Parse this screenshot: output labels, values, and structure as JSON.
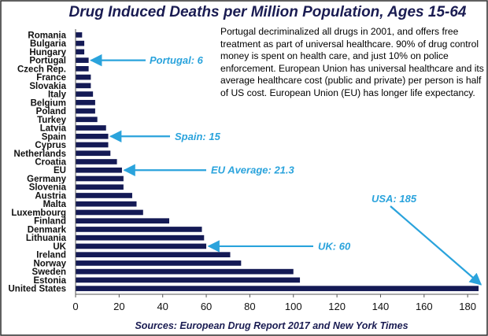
{
  "colors": {
    "bar": "#141a55",
    "title": "#1a1c52",
    "annotation": "#2aa3dc",
    "axis": "#555555",
    "border": "#2b2b2b"
  },
  "note": {
    "paragraph1": "Portugal decriminalized all drugs in 2001, and offers free treatment as part of universal healthcare. 90% of drug control money is spent on health care, and just 10% on police enforcement. European Union has universal healthcare and its average healthcare cost (public and private) per person is half of US cost. European Union (EU) has longer life expectancy."
  },
  "chart_data": {
    "type": "bar",
    "orientation": "horizontal",
    "title": "Drug Induced Deaths per Million Population, Ages 15-64",
    "source": "Sources: European Drug Report 2017 and New York Times",
    "xlabel": "",
    "ylabel": "",
    "xlim": [
      0,
      185
    ],
    "xticks": [
      0,
      20,
      40,
      60,
      80,
      100,
      120,
      140,
      160,
      180
    ],
    "grid": false,
    "legend": "none",
    "categories": [
      "Romania",
      "Bulgaria",
      "Hungary",
      "Portugal",
      "Czech Rep.",
      "France",
      "Slovakia",
      "Italy",
      "Belgium",
      "Poland",
      "Turkey",
      "Latvia",
      "Spain",
      "Cyprus",
      "Netherlands",
      "Croatia",
      "EU",
      "Germany",
      "Slovenia",
      "Austria",
      "Malta",
      "Luxembourg",
      "Finland",
      "Denmark",
      "Lithuania",
      "UK",
      "Ireland",
      "Norway",
      "Sweden",
      "Estonia",
      "United States"
    ],
    "values": [
      3,
      4,
      4,
      6,
      6,
      7,
      7,
      8,
      9,
      9,
      10,
      14,
      15,
      15,
      16,
      19,
      21.3,
      22,
      22,
      26,
      28,
      31,
      43,
      58,
      59,
      60,
      71,
      76,
      100,
      103,
      185
    ],
    "annotations": [
      {
        "text": "Portugal: 6",
        "category": "Portugal"
      },
      {
        "text": "Spain: 15",
        "category": "Spain"
      },
      {
        "text": "EU Average: 21.3",
        "category": "EU"
      },
      {
        "text": "UK: 60",
        "category": "UK"
      },
      {
        "text": "USA: 185",
        "category": "United States"
      }
    ]
  }
}
